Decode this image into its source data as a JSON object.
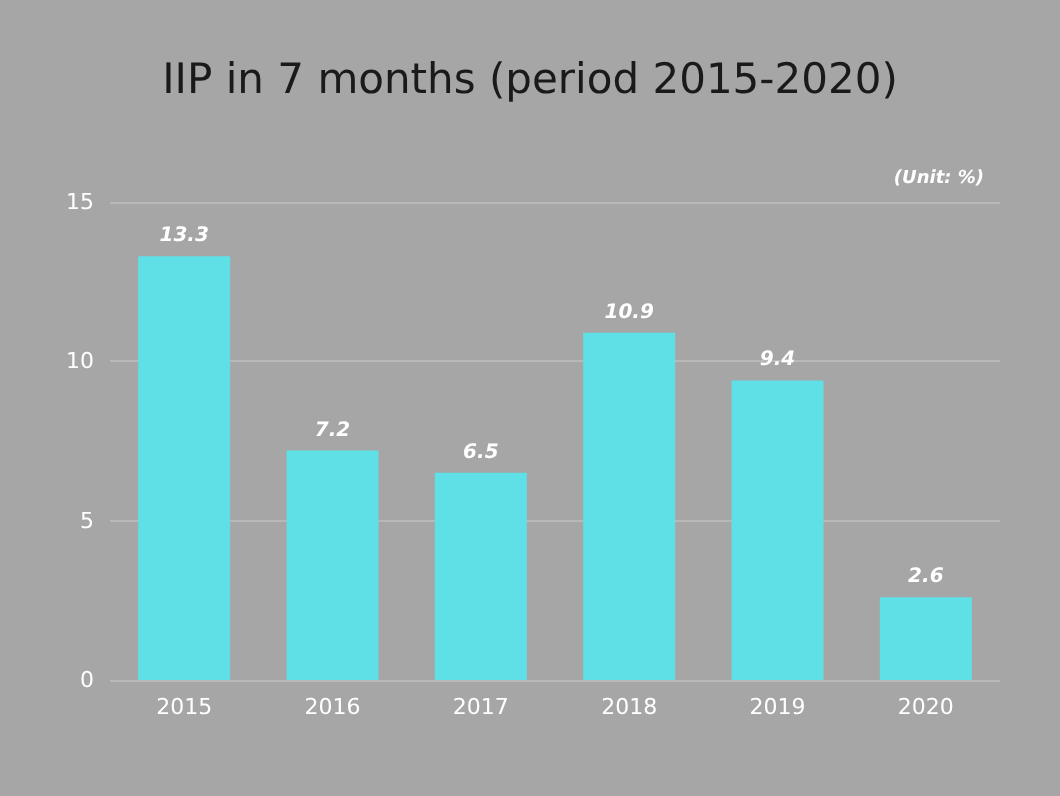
{
  "chart_data": {
    "type": "bar",
    "title": "IIP in 7 months (period 2015-2020)",
    "annotations": [
      "(Unit: %)"
    ],
    "categories": [
      "2015",
      "2016",
      "2017",
      "2018",
      "2019",
      "2020"
    ],
    "values": [
      13.3,
      7.2,
      6.5,
      10.9,
      9.4,
      2.6
    ],
    "color": "#5ee0e6",
    "ylim": [
      0,
      15
    ],
    "yticks": [
      0,
      5,
      10,
      15
    ],
    "grid": "y",
    "data_labels": true
  }
}
